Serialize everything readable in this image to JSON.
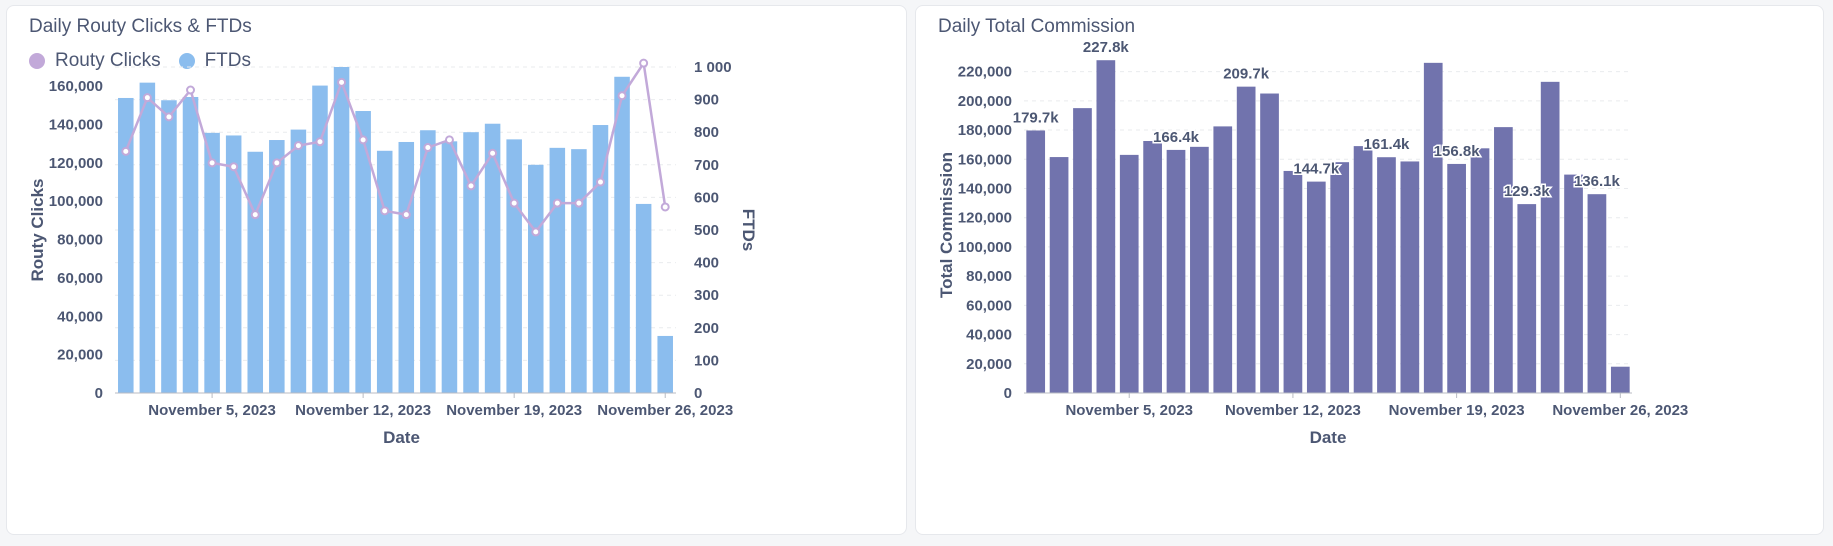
{
  "colors": {
    "bar_blue": "#8bbdee",
    "line_purple": "#c2a9d9",
    "bar_purple": "#7173ad",
    "axis_text": "#4c5773",
    "grid": "#e9ebee"
  },
  "chart_data": [
    {
      "type": "bar+line",
      "title": "Daily Routy Clicks & FTDs",
      "xlabel": "Date",
      "ylabel": "Routy Clicks",
      "y2label": "FTDs",
      "ylim": [
        0,
        170000
      ],
      "y2lim": [
        0,
        1000
      ],
      "yticks": [
        "0",
        "20,000",
        "40,000",
        "60,000",
        "80,000",
        "100,000",
        "120,000",
        "140,000",
        "160,000"
      ],
      "y2ticks": [
        "0",
        "100",
        "200",
        "300",
        "400",
        "500",
        "600",
        "700",
        "800",
        "900",
        "1 000"
      ],
      "xticks": [
        {
          "day": 5,
          "label": "November 5, 2023"
        },
        {
          "day": 12,
          "label": "November 12, 2023"
        },
        {
          "day": 19,
          "label": "November 19, 2023"
        },
        {
          "day": 26,
          "label": "November 26, 2023"
        }
      ],
      "days": [
        1,
        2,
        3,
        4,
        5,
        6,
        7,
        8,
        9,
        10,
        11,
        12,
        13,
        14,
        15,
        16,
        17,
        18,
        19,
        20,
        21,
        22,
        23,
        24,
        25,
        26
      ],
      "legend": [
        "Routy Clicks",
        "FTDs"
      ],
      "series": [
        {
          "name": "FTDs",
          "axis": "right",
          "kind": "bar",
          "values": [
            905,
            952,
            898,
            908,
            798,
            790,
            740,
            776,
            808,
            943,
            1000,
            865,
            743,
            770,
            806,
            772,
            800,
            826,
            778,
            700,
            752,
            748,
            822,
            970,
            580,
            175
          ]
        },
        {
          "name": "Routy Clicks",
          "axis": "left",
          "kind": "line",
          "values": [
            126000,
            154000,
            144000,
            158000,
            120000,
            118000,
            93000,
            120000,
            129000,
            131000,
            162000,
            132000,
            95000,
            93000,
            128000,
            132000,
            108000,
            125000,
            99000,
            84000,
            99000,
            99000,
            110000,
            155000,
            172000,
            97000
          ]
        }
      ]
    },
    {
      "type": "bar",
      "title": "Daily Total Commission",
      "xlabel": "Date",
      "ylabel": "Total Commission",
      "ylim": [
        0,
        230000
      ],
      "yticks": [
        "0",
        "20,000",
        "40,000",
        "60,000",
        "80,000",
        "100,000",
        "120,000",
        "140,000",
        "160,000",
        "180,000",
        "200,000",
        "220,000"
      ],
      "xticks": [
        {
          "day": 5,
          "label": "November 5, 2023"
        },
        {
          "day": 12,
          "label": "November 12, 2023"
        },
        {
          "day": 19,
          "label": "November 19, 2023"
        },
        {
          "day": 26,
          "label": "November 26, 2023"
        }
      ],
      "days": [
        1,
        2,
        3,
        4,
        5,
        6,
        7,
        8,
        9,
        10,
        11,
        12,
        13,
        14,
        15,
        16,
        17,
        18,
        19,
        20,
        21,
        22,
        23,
        24,
        25,
        26
      ],
      "values": [
        179700,
        161500,
        195000,
        227800,
        163000,
        172500,
        166400,
        168500,
        182500,
        209700,
        205000,
        152000,
        144700,
        158000,
        169000,
        161400,
        158500,
        226000,
        156800,
        167500,
        182000,
        129300,
        213000,
        149500,
        136100,
        18000
      ],
      "data_labels": [
        {
          "index": 0,
          "text": "179.7k"
        },
        {
          "index": 3,
          "text": "227.8k"
        },
        {
          "index": 6,
          "text": "166.4k"
        },
        {
          "index": 9,
          "text": "209.7k"
        },
        {
          "index": 12,
          "text": "144.7k"
        },
        {
          "index": 15,
          "text": "161.4k"
        },
        {
          "index": 18,
          "text": "156.8k"
        },
        {
          "index": 21,
          "text": "129.3k"
        },
        {
          "index": 24,
          "text": "136.1k"
        }
      ]
    }
  ]
}
